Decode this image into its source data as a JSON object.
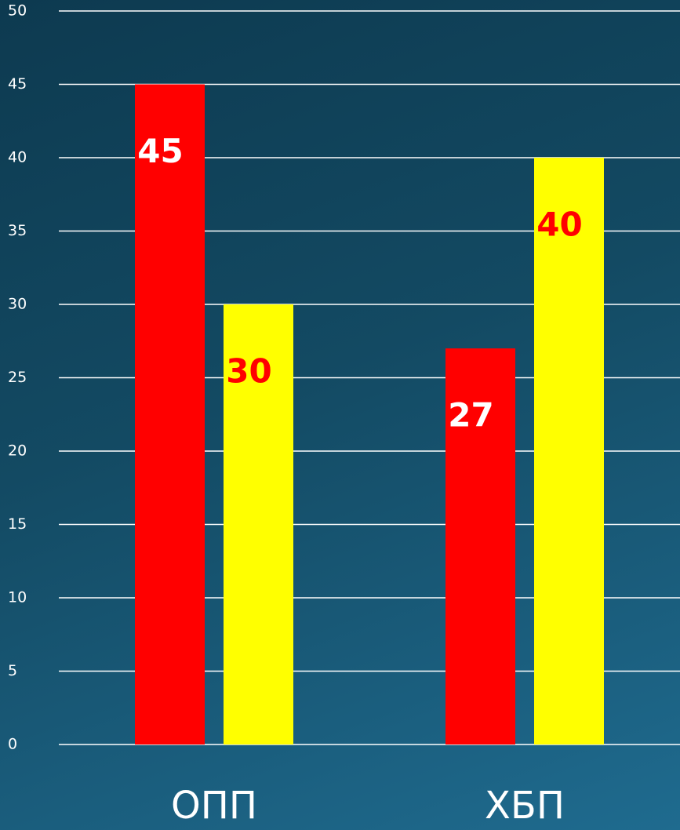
{
  "chart_data": {
    "type": "bar",
    "categories": [
      "ОПП",
      "ХБП"
    ],
    "series": [
      {
        "color": "#ff0000",
        "label_color": "#ffffff",
        "values": [
          45,
          27
        ]
      },
      {
        "color": "#ffff00",
        "label_color": "#ff0000",
        "values": [
          30,
          40
        ]
      }
    ],
    "ylim": [
      0,
      50
    ],
    "yticks": [
      0,
      5,
      10,
      15,
      20,
      25,
      30,
      35,
      40,
      45,
      50
    ],
    "grid": true
  }
}
